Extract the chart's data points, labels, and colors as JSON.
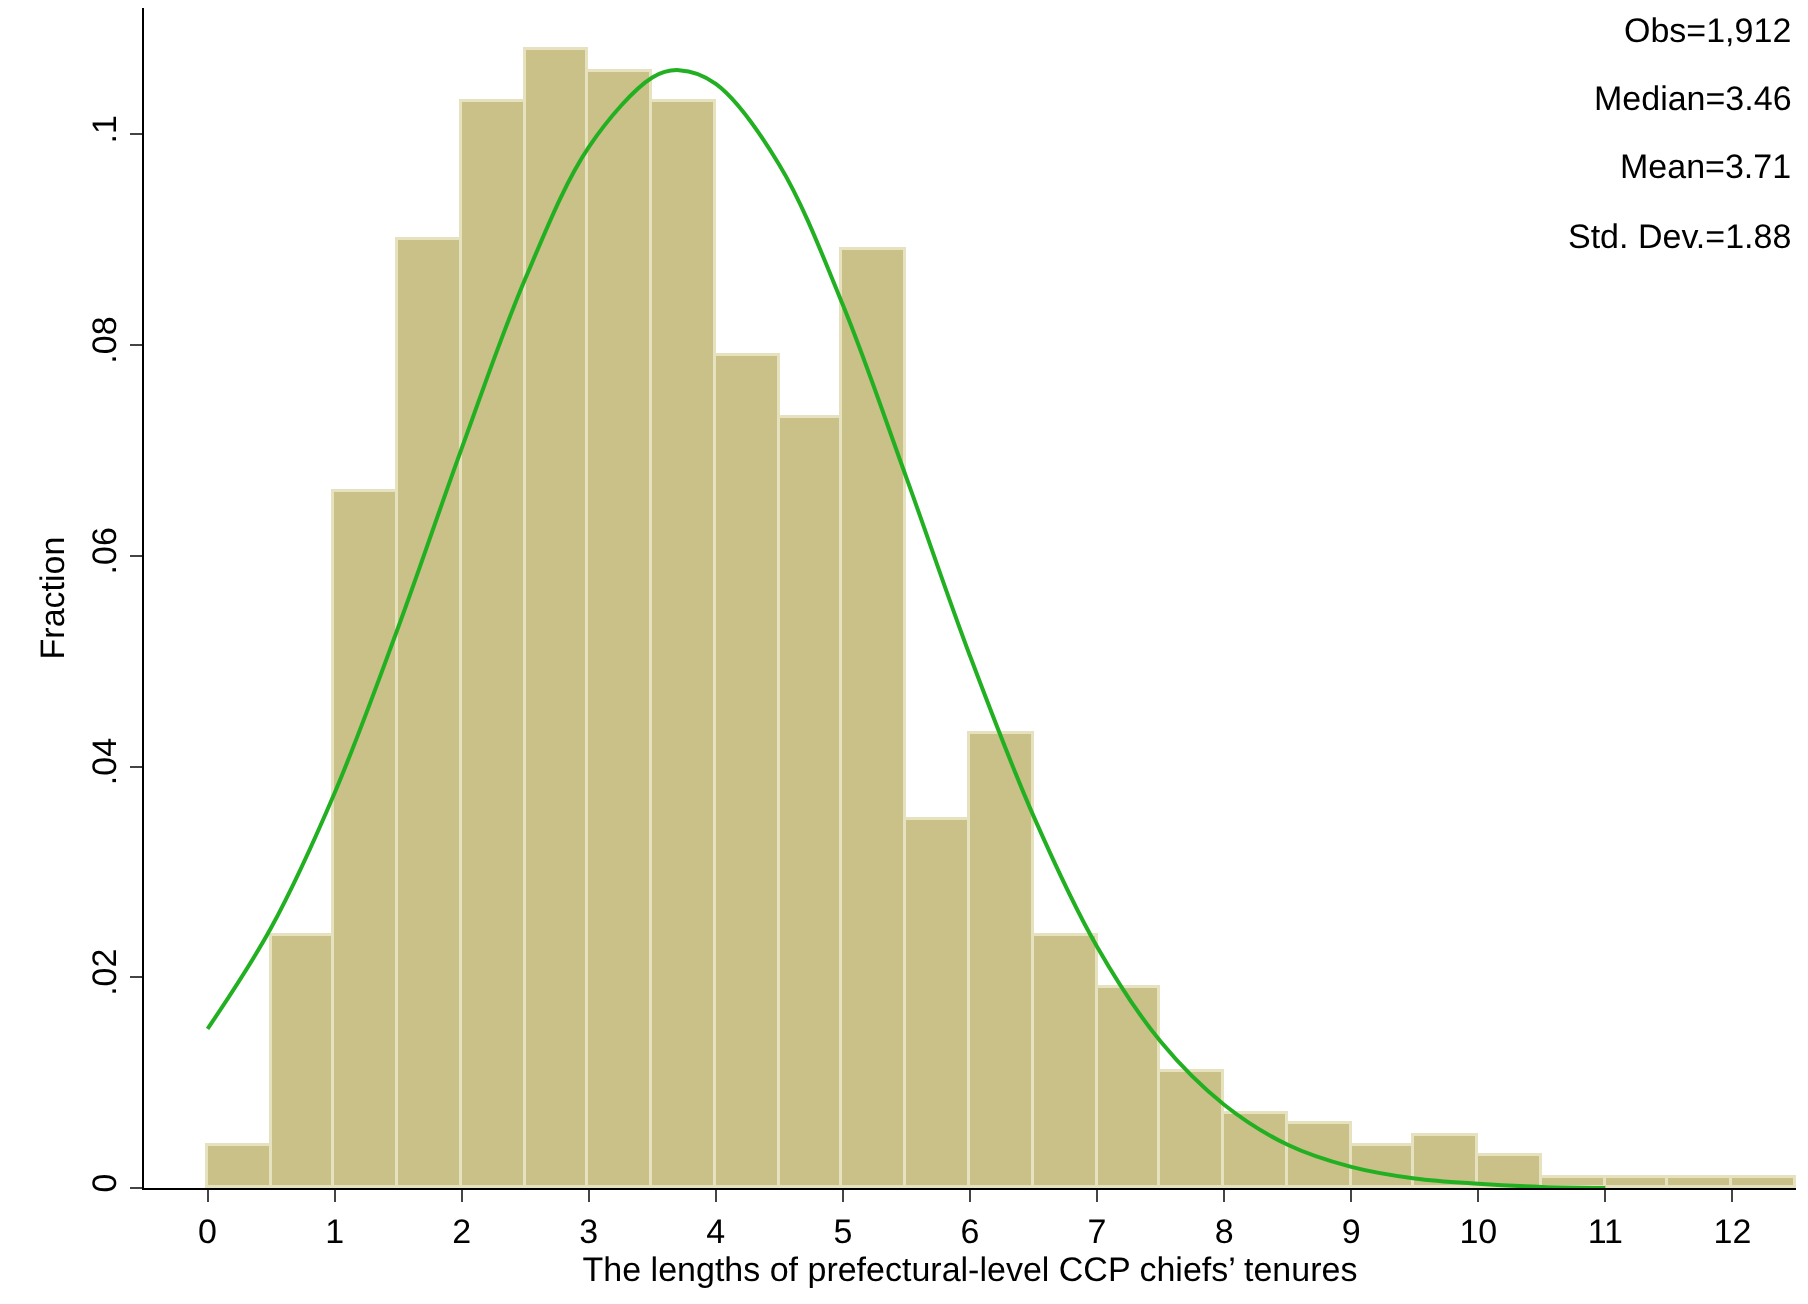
{
  "chart_data": {
    "type": "histogram",
    "xlabel": "The lengths of prefectural-level CCP chiefs’ tenures",
    "ylabel": "Fraction",
    "bins": [
      0,
      0.5,
      1,
      1.5,
      2,
      2.5,
      3,
      3.5,
      4,
      4.5,
      5,
      5.5,
      6,
      6.5,
      7,
      7.5,
      8,
      8.5,
      9,
      9.5,
      10,
      10.5,
      11,
      11.5,
      12,
      12.5
    ],
    "values": [
      0.004,
      0.024,
      0.066,
      0.09,
      0.103,
      0.108,
      0.106,
      0.103,
      0.079,
      0.073,
      0.089,
      0.035,
      0.043,
      0.024,
      0.019,
      0.011,
      0.007,
      0.006,
      0.004,
      0.005,
      0.003,
      0.001,
      0.001,
      0.001,
      0.001
    ],
    "color": "#c9c187",
    "series": [
      {
        "type": "line",
        "color": "#22b022",
        "x": [
          0,
          0.5,
          1,
          1.5,
          2,
          2.5,
          3,
          3.5,
          3.71,
          4,
          4.5,
          5,
          5.5,
          6,
          6.5,
          7,
          7.5,
          8,
          8.5,
          9,
          9.5,
          10,
          10.5,
          11
        ],
        "values": [
          0.0151,
          0.0247,
          0.0375,
          0.0532,
          0.0702,
          0.0863,
          0.0988,
          0.1054,
          0.1061,
          0.1048,
          0.0971,
          0.0838,
          0.0674,
          0.0505,
          0.0353,
          0.0229,
          0.0139,
          0.0079,
          0.0041,
          0.002,
          0.0009,
          0.0004,
          0.0001,
          0.0
        ]
      }
    ],
    "xlim": [
      -0.5,
      12.5
    ],
    "xticks": [
      0,
      1,
      2,
      3,
      4,
      5,
      6,
      7,
      8,
      9,
      10,
      11,
      12
    ],
    "ylim": [
      0,
      0.112
    ],
    "yticks": [
      0,
      {
        "value": 0.02,
        "label": ".02"
      },
      {
        "value": 0.04,
        "label": ".04"
      },
      {
        "value": 0.06,
        "label": ".06"
      },
      {
        "value": 0.08,
        "label": ".08"
      },
      {
        "value": 0.1,
        "label": ".1"
      }
    ],
    "grid": false,
    "annotations": [
      "Obs=1,912",
      "Median=3.46",
      "Mean=3.71",
      "Std. Dev.=1.88"
    ]
  }
}
